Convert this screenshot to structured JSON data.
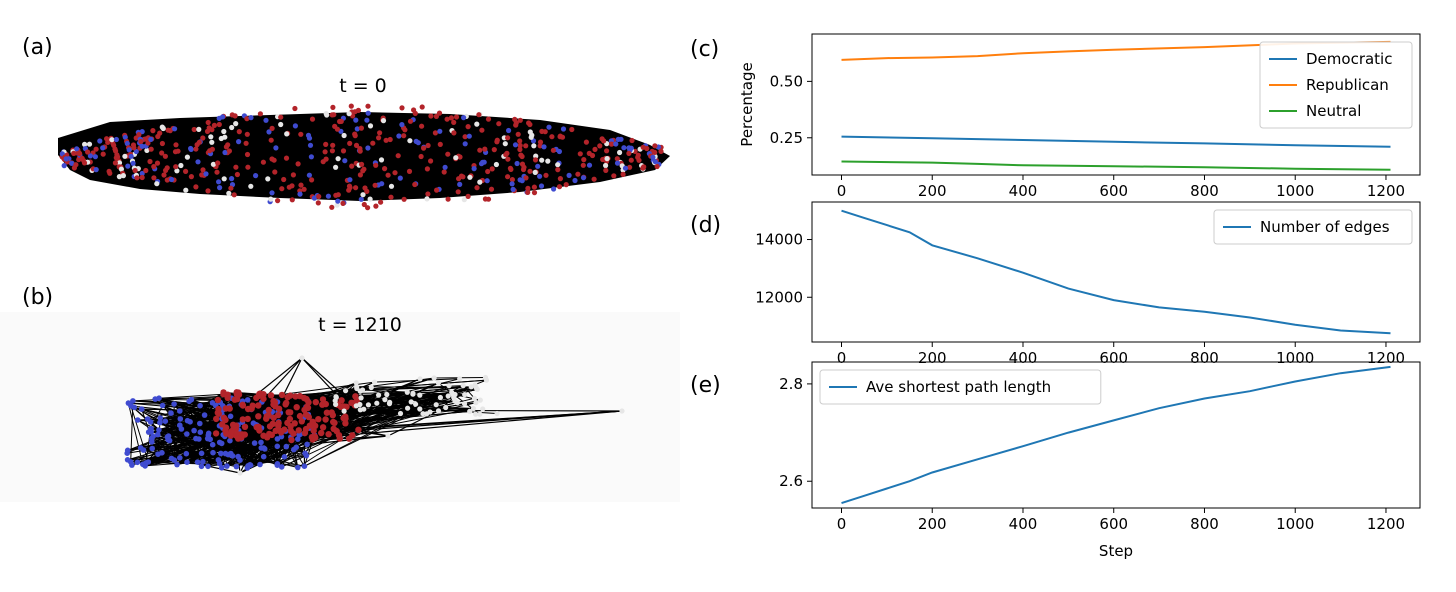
{
  "panels": {
    "a": {
      "label": "(a)",
      "title": "t = 0"
    },
    "b": {
      "label": "(b)",
      "title": "t = 1210"
    },
    "c": {
      "label": "(c)"
    },
    "d": {
      "label": "(d)"
    },
    "e": {
      "label": "(e)"
    }
  },
  "colors": {
    "democratic_node": "#3f4bd0",
    "republican_node": "#b3242a",
    "neutral_node": "#e6e6e6",
    "edge": "#000000",
    "democratic_line": "#1f77b4",
    "republican_line": "#ff7f0e",
    "neutral_line": "#2ca02c"
  },
  "chart_data": [
    {
      "type": "line",
      "panel": "c",
      "ylabel": "Percentage",
      "xticks": [
        0,
        200,
        400,
        600,
        800,
        1000,
        1200
      ],
      "yticks": [
        0.25,
        0.5
      ],
      "ytick_labels": [
        "0.25",
        "0.50"
      ],
      "xlim": [
        -65,
        1275
      ],
      "ylim": [
        0.085,
        0.71
      ],
      "legend_position": "top-right",
      "series": [
        {
          "name": "Democratic",
          "color": "#1f77b4",
          "x": [
            0,
            200,
            400,
            600,
            800,
            1000,
            1210
          ],
          "y": [
            0.255,
            0.248,
            0.24,
            0.232,
            0.225,
            0.217,
            0.21
          ]
        },
        {
          "name": "Republican",
          "color": "#ff7f0e",
          "x": [
            0,
            100,
            200,
            300,
            400,
            500,
            600,
            800,
            1000,
            1210
          ],
          "y": [
            0.595,
            0.603,
            0.606,
            0.612,
            0.625,
            0.633,
            0.64,
            0.652,
            0.668,
            0.675
          ]
        },
        {
          "name": "Neutral",
          "color": "#2ca02c",
          "x": [
            0,
            200,
            300,
            400,
            600,
            800,
            1000,
            1210
          ],
          "y": [
            0.145,
            0.14,
            0.134,
            0.128,
            0.124,
            0.119,
            0.113,
            0.108
          ]
        }
      ]
    },
    {
      "type": "line",
      "panel": "d",
      "xticks": [
        0,
        200,
        400,
        600,
        800,
        1000,
        1200
      ],
      "yticks": [
        12000,
        14000
      ],
      "ytick_labels": [
        "12000",
        "14000"
      ],
      "xlim": [
        -65,
        1275
      ],
      "ylim": [
        10450,
        15300
      ],
      "legend_position": "top-right",
      "series": [
        {
          "name": "Number of edges",
          "color": "#1f77b4",
          "x": [
            0,
            50,
            100,
            150,
            200,
            300,
            400,
            500,
            600,
            700,
            800,
            900,
            1000,
            1100,
            1210
          ],
          "y": [
            15000,
            14750,
            14500,
            14250,
            13800,
            13350,
            12850,
            12300,
            11900,
            11650,
            11500,
            11300,
            11050,
            10850,
            10750
          ]
        }
      ]
    },
    {
      "type": "line",
      "panel": "e",
      "xlabel": "Step",
      "xticks": [
        0,
        200,
        400,
        600,
        800,
        1000,
        1200
      ],
      "yticks": [
        2.6,
        2.8
      ],
      "ytick_labels": [
        "2.6",
        "2.8"
      ],
      "xlim": [
        -65,
        1275
      ],
      "ylim": [
        2.545,
        2.845
      ],
      "legend_position": "top-left",
      "series": [
        {
          "name": "Ave shortest path length",
          "color": "#1f77b4",
          "x": [
            0,
            50,
            100,
            150,
            200,
            300,
            400,
            500,
            600,
            700,
            800,
            900,
            950,
            1000,
            1100,
            1210
          ],
          "y": [
            2.555,
            2.57,
            2.585,
            2.6,
            2.618,
            2.645,
            2.672,
            2.7,
            2.725,
            2.75,
            2.77,
            2.785,
            2.795,
            2.805,
            2.822,
            2.835
          ]
        }
      ]
    }
  ]
}
